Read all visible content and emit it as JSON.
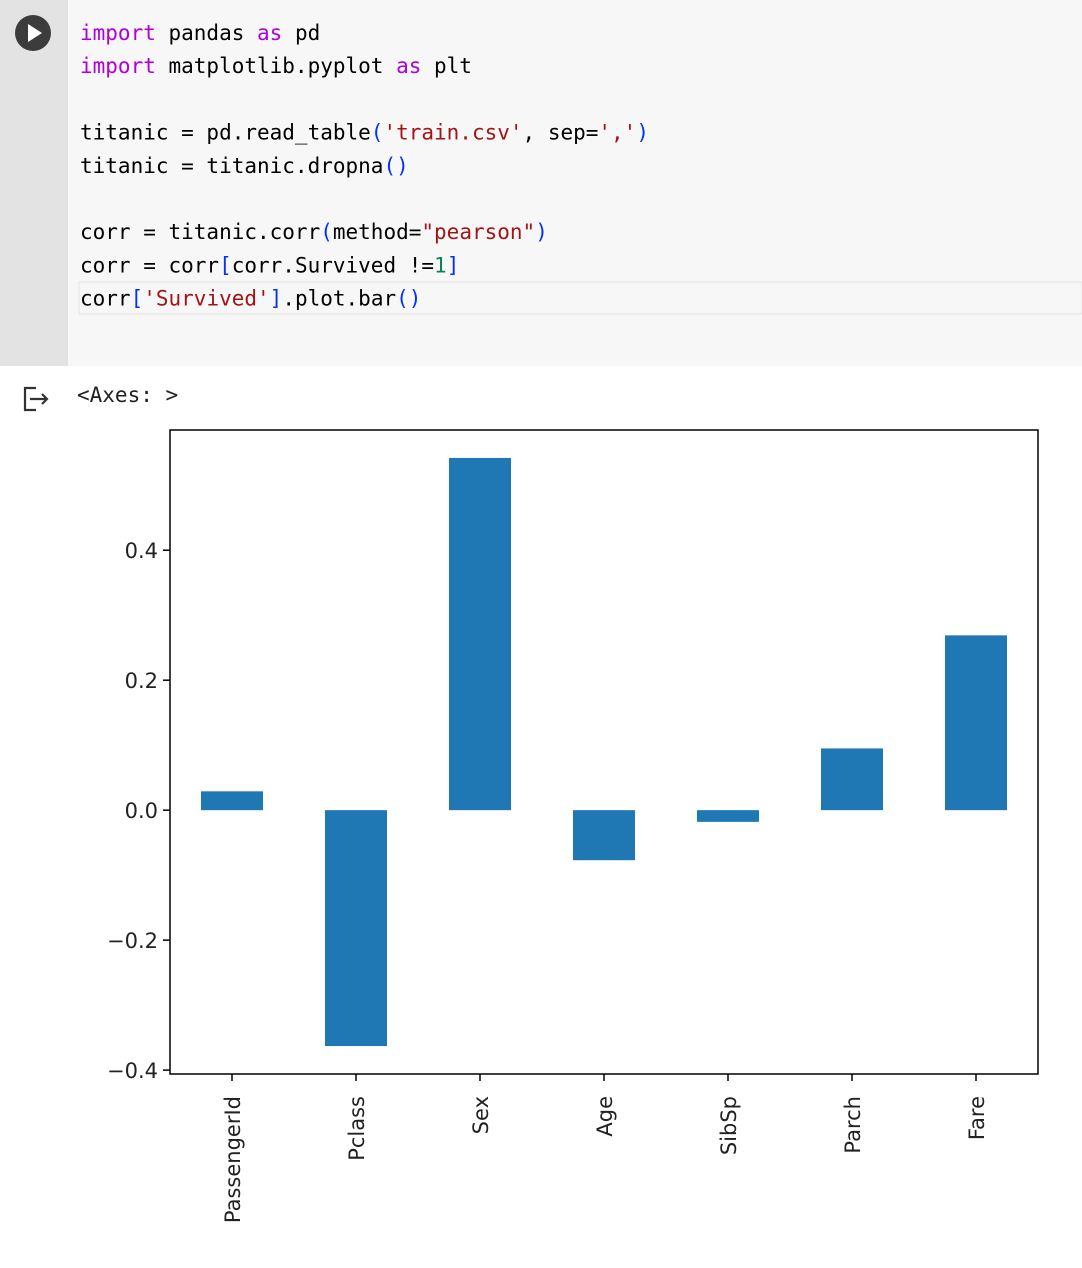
{
  "code": {
    "lines": [
      [
        {
          "text": "import",
          "color": "#af00db"
        },
        {
          "text": " pandas ",
          "color": "#000000"
        },
        {
          "text": "as",
          "color": "#af00db"
        },
        {
          "text": " pd",
          "color": "#000000"
        }
      ],
      [
        {
          "text": "import",
          "color": "#af00db"
        },
        {
          "text": " matplotlib.pyplot ",
          "color": "#000000"
        },
        {
          "text": "as",
          "color": "#af00db"
        },
        {
          "text": " plt",
          "color": "#000000"
        }
      ],
      [],
      [
        {
          "text": "titanic = pd.read_table",
          "color": "#000000"
        },
        {
          "text": "(",
          "color": "#0431fa"
        },
        {
          "text": "'train.csv'",
          "color": "#a31515"
        },
        {
          "text": ", sep=",
          "color": "#000000"
        },
        {
          "text": "','",
          "color": "#a31515"
        },
        {
          "text": ")",
          "color": "#0431fa"
        }
      ],
      [
        {
          "text": "titanic = titanic.dropna",
          "color": "#000000"
        },
        {
          "text": "()",
          "color": "#0431fa"
        }
      ],
      [],
      [
        {
          "text": "corr = titanic.corr",
          "color": "#000000"
        },
        {
          "text": "(",
          "color": "#0431fa"
        },
        {
          "text": "method=",
          "color": "#000000"
        },
        {
          "text": "\"pearson\"",
          "color": "#a31515"
        },
        {
          "text": ")",
          "color": "#0431fa"
        }
      ],
      [
        {
          "text": "corr = corr",
          "color": "#000000"
        },
        {
          "text": "[",
          "color": "#0431fa"
        },
        {
          "text": "corr.Survived !=",
          "color": "#000000"
        },
        {
          "text": "1",
          "color": "#098658"
        },
        {
          "text": "]",
          "color": "#0431fa"
        }
      ],
      [
        {
          "text": "corr",
          "color": "#000000"
        },
        {
          "text": "[",
          "color": "#0431fa"
        },
        {
          "text": "'Survived'",
          "color": "#a31515"
        },
        {
          "text": "]",
          "color": "#0431fa"
        },
        {
          "text": ".plot.bar",
          "color": "#000000"
        },
        {
          "text": "()",
          "color": "#0431fa"
        }
      ]
    ]
  },
  "output": {
    "text": "<Axes: >"
  },
  "chart_data": {
    "type": "bar",
    "categories": [
      "PassengerId",
      "Pclass",
      "Sex",
      "Age",
      "SibSp",
      "Parch",
      "Fare"
    ],
    "values": [
      0.029,
      -0.363,
      0.542,
      -0.077,
      -0.018,
      0.095,
      0.269
    ],
    "color": "#1f77b4",
    "ylim": [
      -0.406,
      0.585
    ],
    "yticks": [
      {
        "value": -0.4,
        "label": "−0.4"
      },
      {
        "value": -0.2,
        "label": "−0.2"
      },
      {
        "value": 0,
        "label": "0.0"
      },
      0.2,
      0.4
    ],
    "grid": false
  }
}
